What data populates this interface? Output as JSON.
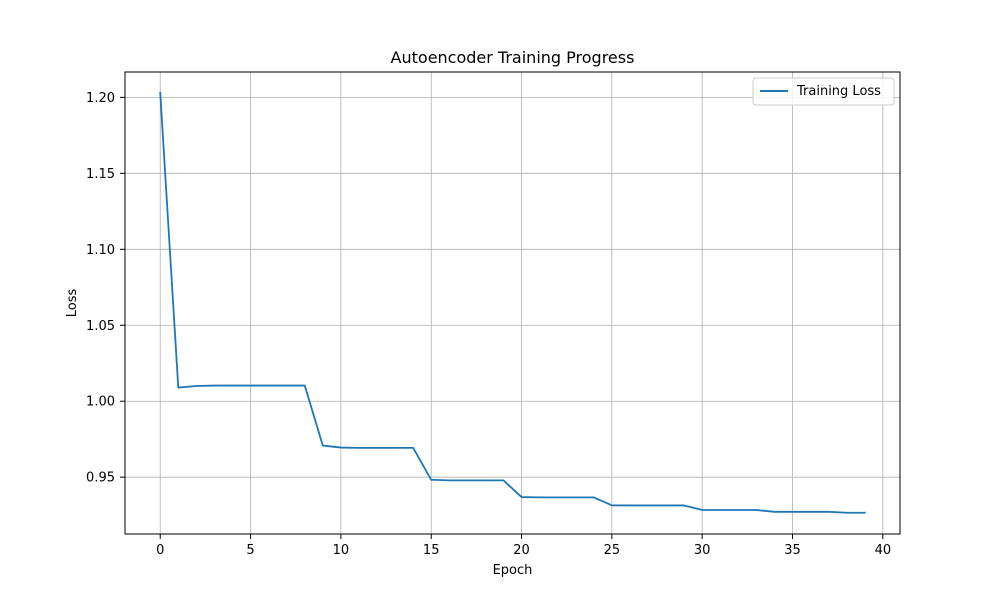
{
  "chart_data": {
    "type": "line",
    "title": "Autoencoder Training Progress",
    "xlabel": "Epoch",
    "ylabel": "Loss",
    "xlim": [
      -1.95,
      40.95
    ],
    "ylim": [
      0.9126,
      1.2167
    ],
    "xticks": [
      0,
      5,
      10,
      15,
      20,
      25,
      30,
      35,
      40
    ],
    "xtick_labels": [
      "0",
      "5",
      "10",
      "15",
      "20",
      "25",
      "30",
      "35",
      "40"
    ],
    "yticks": [
      0.95,
      1.0,
      1.05,
      1.1,
      1.15,
      1.2
    ],
    "ytick_labels": [
      "0.95",
      "1.00",
      "1.05",
      "1.10",
      "1.15",
      "1.20"
    ],
    "grid": true,
    "legend_position": "top-right",
    "series": [
      {
        "name": "Training Loss",
        "color": "#1f77b4",
        "x": [
          0,
          1,
          2,
          3,
          4,
          5,
          6,
          7,
          8,
          9,
          10,
          11,
          12,
          13,
          14,
          15,
          16,
          17,
          18,
          19,
          20,
          21,
          22,
          23,
          24,
          25,
          26,
          27,
          28,
          29,
          30,
          31,
          32,
          33,
          34,
          35,
          36,
          37,
          38,
          39
        ],
        "values": [
          1.203,
          1.009,
          1.01,
          1.0103,
          1.0103,
          1.0103,
          1.0103,
          1.0103,
          1.0103,
          0.9708,
          0.9695,
          0.9693,
          0.9693,
          0.9693,
          0.9693,
          0.9483,
          0.9479,
          0.9479,
          0.9479,
          0.9479,
          0.9369,
          0.9367,
          0.9367,
          0.9367,
          0.9367,
          0.9315,
          0.9314,
          0.9314,
          0.9314,
          0.9314,
          0.9284,
          0.9284,
          0.9284,
          0.9284,
          0.9272,
          0.9272,
          0.9272,
          0.9272,
          0.9266,
          0.9266
        ]
      }
    ]
  }
}
